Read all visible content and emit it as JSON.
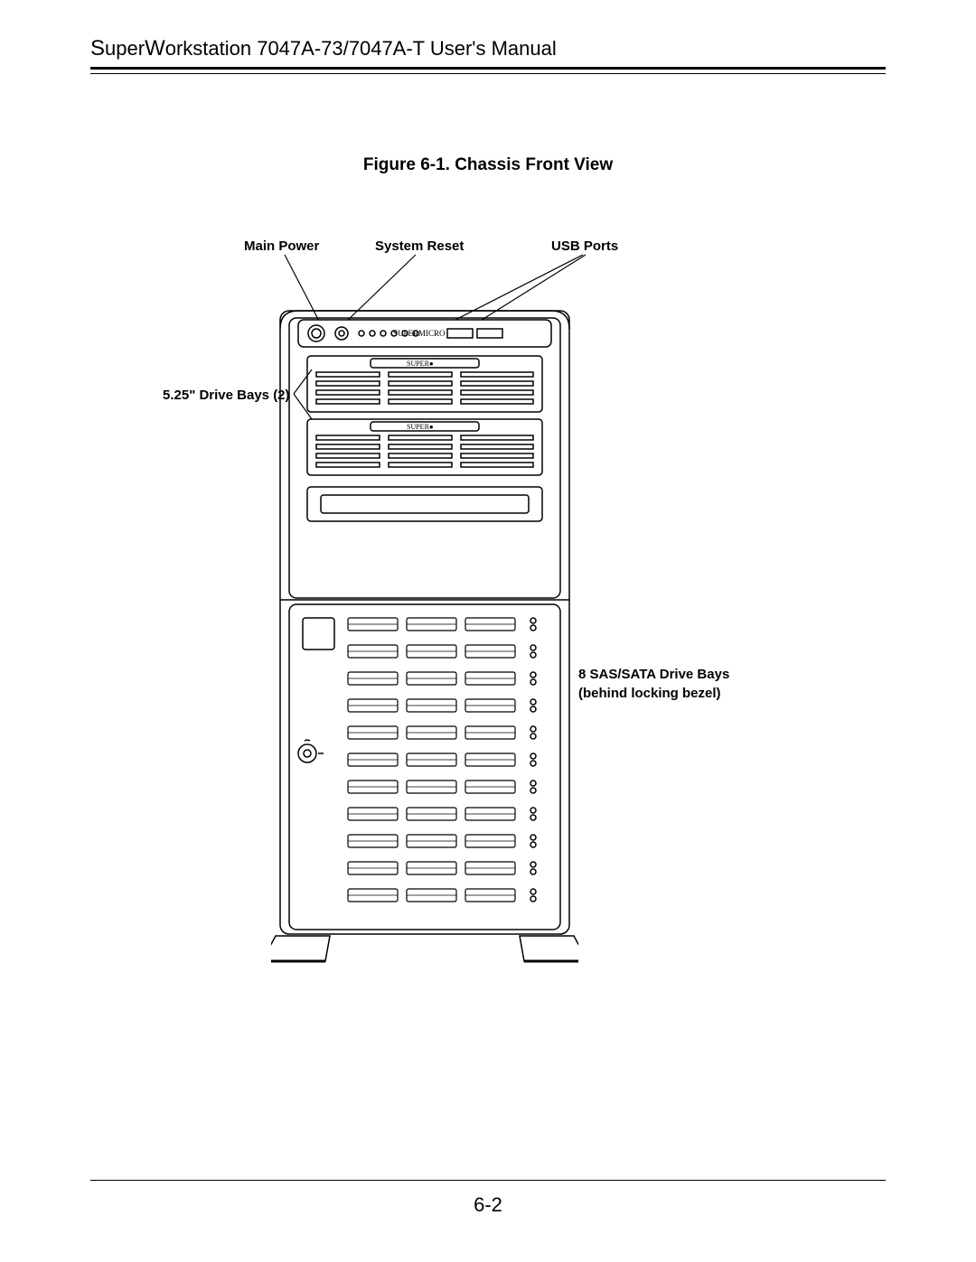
{
  "header": {
    "title_prefix": "S",
    "title_mid": "uper",
    "title_w": "W",
    "title_rest": "orkstation 7047A-73/7047A-T User's Manual"
  },
  "figure": {
    "title": "Figure 6-1.  Chassis Front View"
  },
  "callouts": {
    "main_power": "Main Power",
    "system_reset": "System Reset",
    "usb_ports": "USB Ports",
    "drive_bays_525": "5.25\" Drive Bays (2)",
    "sas_sata_line1": "8 SAS/SATA Drive Bays",
    "sas_sata_line2": "(behind locking bezel)"
  },
  "chassis": {
    "brand_top": "SUPERMICRO",
    "brand_bay": "SUPER"
  },
  "page_number": "6-2",
  "style": {
    "line_color": "#000000",
    "bg": "#ffffff",
    "callout_fontsize": 15,
    "header_fontsize": 22,
    "title_fontsize": 19,
    "diagram_stroke_width": 1.5
  }
}
